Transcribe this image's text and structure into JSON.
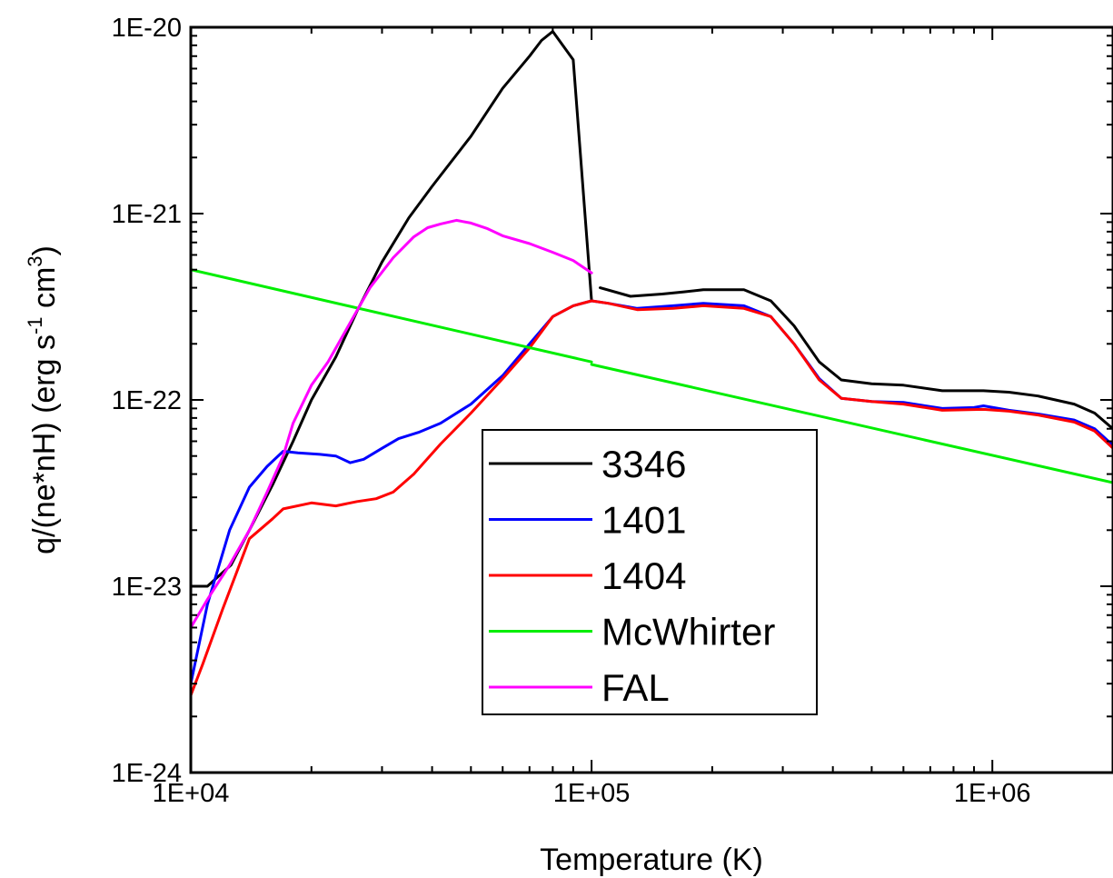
{
  "chart_data": {
    "type": "line",
    "title": "",
    "xlabel": "Temperature (K)",
    "ylabel_parts": {
      "prefix": "q/(ne*nH) (erg s",
      "sup1": "-1",
      "middle": " cm",
      "sup2": "3",
      "suffix": ")"
    },
    "x_scale": "log",
    "y_scale": "log",
    "xlim": [
      10000,
      2000000
    ],
    "ylim": [
      1e-24,
      1e-20
    ],
    "x_ticks": [
      {
        "value": 10000,
        "label": "1E+04"
      },
      {
        "value": 100000,
        "label": "1E+05"
      },
      {
        "value": 1000000,
        "label": "1E+06"
      }
    ],
    "y_ticks": [
      {
        "value": 1e-20,
        "label": "1E-20"
      },
      {
        "value": 1e-21,
        "label": "1E-21"
      },
      {
        "value": 1e-22,
        "label": "1E-22"
      },
      {
        "value": 1e-23,
        "label": "1E-23"
      },
      {
        "value": 1e-24,
        "label": "1E-24"
      }
    ],
    "grid": false,
    "legend_position": "bottom-center",
    "series": [
      {
        "name": "3346",
        "color": "#000000",
        "segments": [
          [
            [
              10000,
              1e-23
            ],
            [
              11000,
              1e-23
            ],
            [
              12600,
              1.3e-23
            ],
            [
              14000,
              2e-23
            ],
            [
              16000,
              3.5e-23
            ],
            [
              18000,
              6e-23
            ],
            [
              20000,
              1e-22
            ],
            [
              23000,
              1.7e-22
            ],
            [
              26000,
              3e-22
            ],
            [
              30000,
              5.5e-22
            ],
            [
              35000,
              9.5e-22
            ],
            [
              40000,
              1.4e-21
            ],
            [
              50000,
              2.6e-21
            ],
            [
              60000,
              4.7e-21
            ],
            [
              70000,
              7e-21
            ],
            [
              75000,
              8.5e-21
            ],
            [
              80000,
              9.5e-21
            ],
            [
              90000,
              6.7e-21
            ],
            [
              100000,
              3.4e-22
            ]
          ],
          [
            [
              105000,
              4e-22
            ],
            [
              125000,
              3.6e-22
            ],
            [
              150000,
              3.7e-22
            ],
            [
              170000,
              3.8e-22
            ],
            [
              190000,
              3.9e-22
            ],
            [
              240000,
              3.9e-22
            ],
            [
              280000,
              3.4e-22
            ],
            [
              320000,
              2.5e-22
            ],
            [
              370000,
              1.6e-22
            ],
            [
              420000,
              1.28e-22
            ],
            [
              500000,
              1.22e-22
            ],
            [
              600000,
              1.2e-22
            ],
            [
              750000,
              1.12e-22
            ],
            [
              950000,
              1.12e-22
            ],
            [
              1100000,
              1.1e-22
            ],
            [
              1300000,
              1.05e-22
            ],
            [
              1600000,
              9.5e-23
            ],
            [
              1800000,
              8.5e-23
            ],
            [
              2000000,
              7e-23
            ]
          ]
        ]
      },
      {
        "name": "1401",
        "color": "#0000ff",
        "segments": [
          [
            [
              10000,
              3e-24
            ],
            [
              11000,
              8e-24
            ],
            [
              12500,
              2e-23
            ],
            [
              14000,
              3.4e-23
            ],
            [
              15500,
              4.4e-23
            ],
            [
              17000,
              5.3e-23
            ],
            [
              18500,
              5.2e-23
            ],
            [
              21000,
              5.1e-23
            ],
            [
              23000,
              5e-23
            ],
            [
              25000,
              4.6e-23
            ],
            [
              27000,
              4.8e-23
            ],
            [
              30000,
              5.5e-23
            ],
            [
              33000,
              6.2e-23
            ],
            [
              37000,
              6.7e-23
            ],
            [
              42000,
              7.5e-23
            ],
            [
              50000,
              9.5e-23
            ],
            [
              60000,
              1.35e-22
            ],
            [
              70000,
              2e-22
            ],
            [
              80000,
              2.8e-22
            ],
            [
              90000,
              3.2e-22
            ],
            [
              100000,
              3.4e-22
            ],
            [
              110000,
              3.3e-22
            ],
            [
              130000,
              3.1e-22
            ],
            [
              160000,
              3.2e-22
            ],
            [
              190000,
              3.3e-22
            ],
            [
              240000,
              3.2e-22
            ],
            [
              280000,
              2.8e-22
            ],
            [
              320000,
              2e-22
            ],
            [
              370000,
              1.3e-22
            ],
            [
              420000,
              1.02e-22
            ],
            [
              500000,
              9.8e-23
            ],
            [
              600000,
              9.7e-23
            ],
            [
              750000,
              9e-23
            ],
            [
              900000,
              9.1e-23
            ],
            [
              950000,
              9.3e-23
            ],
            [
              1100000,
              8.8e-23
            ],
            [
              1300000,
              8.4e-23
            ],
            [
              1600000,
              7.8e-23
            ],
            [
              1800000,
              7e-23
            ],
            [
              2000000,
              5.7e-23
            ]
          ]
        ]
      },
      {
        "name": "1404",
        "color": "#ff0000",
        "segments": [
          [
            [
              10000,
              2.6e-24
            ],
            [
              10700,
              3.8e-24
            ],
            [
              12000,
              7.5e-24
            ],
            [
              14000,
              1.8e-23
            ],
            [
              16000,
              2.3e-23
            ],
            [
              17000,
              2.6e-23
            ],
            [
              20000,
              2.8e-23
            ],
            [
              23000,
              2.7e-23
            ],
            [
              26000,
              2.85e-23
            ],
            [
              29000,
              2.95e-23
            ],
            [
              32000,
              3.2e-23
            ],
            [
              36000,
              4e-23
            ],
            [
              42000,
              5.8e-23
            ],
            [
              50000,
              8.5e-23
            ],
            [
              60000,
              1.3e-22
            ],
            [
              70000,
              1.9e-22
            ],
            [
              80000,
              2.8e-22
            ],
            [
              90000,
              3.2e-22
            ],
            [
              100000,
              3.4e-22
            ],
            [
              110000,
              3.3e-22
            ],
            [
              130000,
              3.05e-22
            ],
            [
              160000,
              3.1e-22
            ],
            [
              190000,
              3.2e-22
            ],
            [
              240000,
              3.1e-22
            ],
            [
              280000,
              2.8e-22
            ],
            [
              320000,
              2e-22
            ],
            [
              370000,
              1.28e-22
            ],
            [
              420000,
              1.02e-22
            ],
            [
              500000,
              9.8e-23
            ],
            [
              600000,
              9.5e-23
            ],
            [
              750000,
              8.8e-23
            ],
            [
              950000,
              8.9e-23
            ],
            [
              1100000,
              8.7e-23
            ],
            [
              1300000,
              8.3e-23
            ],
            [
              1600000,
              7.6e-23
            ],
            [
              1800000,
              6.8e-23
            ],
            [
              2000000,
              5.5e-23
            ]
          ]
        ]
      },
      {
        "name": "McWhirter",
        "color": "#00ee00",
        "segments": [
          [
            [
              10000,
              5e-22
            ],
            [
              100000,
              1.6e-22
            ]
          ],
          [
            [
              100000,
              1.55e-22
            ],
            [
              2000000,
              3.6e-23
            ]
          ]
        ]
      },
      {
        "name": "FAL",
        "color": "#ff00ff",
        "segments": [
          [
            [
              10000,
              6e-24
            ],
            [
              11000,
              8.5e-24
            ],
            [
              12500,
              1.3e-23
            ],
            [
              14000,
              2e-23
            ],
            [
              15500,
              3.2e-23
            ],
            [
              17000,
              5e-23
            ],
            [
              18000,
              7.5e-23
            ],
            [
              20000,
              1.2e-22
            ],
            [
              22000,
              1.6e-22
            ],
            [
              25000,
              2.6e-22
            ],
            [
              28000,
              4e-22
            ],
            [
              32000,
              5.8e-22
            ],
            [
              36000,
              7.5e-22
            ],
            [
              39000,
              8.4e-22
            ],
            [
              42000,
              8.8e-22
            ],
            [
              46000,
              9.2e-22
            ],
            [
              50000,
              8.9e-22
            ],
            [
              55000,
              8.3e-22
            ],
            [
              60000,
              7.6e-22
            ],
            [
              70000,
              6.9e-22
            ],
            [
              80000,
              6.2e-22
            ],
            [
              90000,
              5.6e-22
            ],
            [
              100000,
              4.8e-22
            ]
          ]
        ]
      }
    ]
  }
}
